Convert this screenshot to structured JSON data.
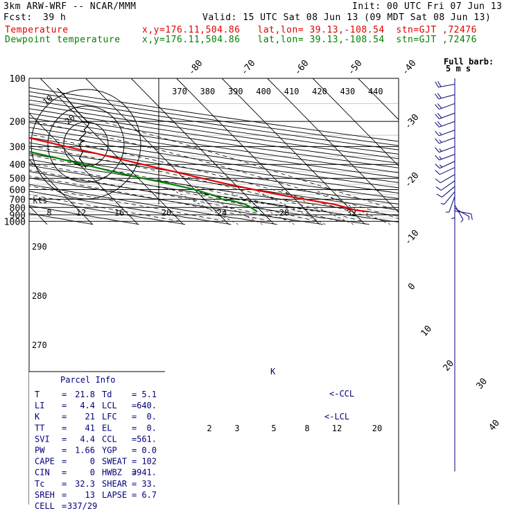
{
  "header": {
    "model": "3km ARW-WRF -- NCAR/MMM",
    "init": "Init: 00 UTC Fri 07 Jun 13",
    "fcst_label": "Fcst:",
    "fcst_value": "39 h",
    "valid": "Valid: 15 UTC Sat 08 Jun 13 (09 MDT Sat 08 Jun 13)",
    "temp_label": "Temperature",
    "temp_info": "x,y=176.11,504.86   lat,lon= 39.13,-108.54  stn=GJT ,72476",
    "dew_label": "Dewpoint temperature",
    "dew_info": "x,y=176.11,504.86   lat,lon= 39.13,-108.54  stn=GJT ,72476"
  },
  "colors": {
    "temperature": "#e00000",
    "dewpoint": "#008000",
    "wind": "#00007a",
    "lines": "#000000",
    "isotherm_grey": "#c8c8c8"
  },
  "chart_data": {
    "type": "line",
    "diagram": "skew-T log-p",
    "y_axis": {
      "scale": "log",
      "ticks": [
        100,
        200,
        300,
        400,
        500,
        600,
        700,
        800,
        900,
        1000
      ]
    },
    "isotherm_labels": [
      -80,
      -70,
      -60,
      -50,
      -40,
      -30,
      -20,
      -10,
      0,
      10,
      20,
      30,
      40
    ],
    "theta_labels": [
      370,
      380,
      390,
      400,
      410,
      420,
      430,
      440
    ],
    "theta_low_labels": [
      290,
      280,
      270
    ],
    "mixing_ratio_labels": [
      "2",
      "3",
      "5",
      "8",
      "12",
      "20"
    ],
    "hodo_speed_labels": [
      "8",
      "12",
      "16",
      "20",
      "24",
      "28",
      "32"
    ],
    "hodo_ring_labels": [
      "10",
      "20"
    ],
    "hodo_units": "kts",
    "series": [
      {
        "name": "Temperature",
        "points": [
          [
            855,
            23.5
          ],
          [
            845,
            22
          ],
          [
            825,
            20.5
          ],
          [
            800,
            19.5
          ],
          [
            760,
            17.5
          ],
          [
            720,
            14
          ],
          [
            700,
            12
          ],
          [
            650,
            7.5
          ],
          [
            600,
            3
          ],
          [
            550,
            -1.5
          ],
          [
            500,
            -6
          ],
          [
            450,
            -10.5
          ],
          [
            400,
            -16
          ],
          [
            350,
            -22
          ],
          [
            300,
            -29
          ],
          [
            275,
            -33
          ],
          [
            250,
            -37
          ],
          [
            220,
            -42
          ],
          [
            200,
            -46
          ],
          [
            180,
            -50
          ],
          [
            160,
            -54
          ],
          [
            140,
            -57
          ],
          [
            125,
            -58
          ],
          [
            110,
            -60
          ],
          [
            100,
            -62
          ]
        ]
      },
      {
        "name": "Dewpoint temperature",
        "points": [
          [
            855,
            -1
          ],
          [
            800,
            -1.5
          ],
          [
            760,
            -2
          ],
          [
            720,
            -4
          ],
          [
            700,
            -6
          ],
          [
            660,
            -7
          ],
          [
            600,
            -10
          ],
          [
            550,
            -14
          ],
          [
            500,
            -19
          ],
          [
            450,
            -24
          ],
          [
            400,
            -29
          ],
          [
            350,
            -35
          ],
          [
            300,
            -42
          ],
          [
            250,
            -49
          ],
          [
            220,
            -53
          ],
          [
            200,
            -57
          ],
          [
            190,
            -60
          ],
          [
            180,
            -63
          ],
          [
            160,
            -67
          ],
          [
            140,
            -70
          ],
          [
            120,
            -73
          ],
          [
            110,
            -76
          ],
          [
            100,
            -79
          ]
        ]
      }
    ],
    "parcel_path_labels": {
      "ccl": "<-CCL",
      "lcl": "<-LCL"
    }
  },
  "parcel_info": {
    "title": "Parcel Info",
    "rows": [
      {
        "a_key": "T",
        "a_val": "21.8",
        "b_key": "Td",
        "b_val": "5.1"
      },
      {
        "a_key": "LI",
        "a_val": "4.4",
        "b_key": "LCL",
        "b_val": "640."
      },
      {
        "a_key": "K",
        "a_val": "21",
        "b_key": "LFC",
        "b_val": "0."
      },
      {
        "a_key": "TT",
        "a_val": "41",
        "b_key": "EL",
        "b_val": "0."
      },
      {
        "a_key": "SVI",
        "a_val": "4.4",
        "b_key": "CCL",
        "b_val": "561."
      },
      {
        "a_key": "PW",
        "a_val": "1.66",
        "b_key": "YGP",
        "b_val": "0.0"
      },
      {
        "a_key": "CAPE",
        "a_val": "0",
        "b_key": "SWEAT",
        "b_val": "102"
      },
      {
        "a_key": "CIN",
        "a_val": "0",
        "b_key": "HWBZ",
        "b_val": "3941."
      },
      {
        "a_key": "Tc",
        "a_val": "32.3",
        "b_key": "SHEAR",
        "b_val": "33."
      },
      {
        "a_key": "SREH",
        "a_val": "13",
        "b_key": "LAPSE",
        "b_val": "6.7"
      }
    ],
    "cell_label": "CELL",
    "cell_value": "337/29"
  },
  "wind": {
    "full_barb_label": "Full barb:",
    "full_barb_value": "5 m s",
    "barbs": [
      {
        "p": 110,
        "dir": 260,
        "speed": 20
      },
      {
        "p": 130,
        "dir": 255,
        "speed": 22
      },
      {
        "p": 150,
        "dir": 250,
        "speed": 22
      },
      {
        "p": 175,
        "dir": 250,
        "speed": 20
      },
      {
        "p": 200,
        "dir": 250,
        "speed": 18
      },
      {
        "p": 230,
        "dir": 250,
        "speed": 17
      },
      {
        "p": 260,
        "dir": 250,
        "speed": 16
      },
      {
        "p": 300,
        "dir": 250,
        "speed": 15
      },
      {
        "p": 340,
        "dir": 250,
        "speed": 14
      },
      {
        "p": 380,
        "dir": 245,
        "speed": 13
      },
      {
        "p": 420,
        "dir": 245,
        "speed": 12
      },
      {
        "p": 470,
        "dir": 240,
        "speed": 11
      },
      {
        "p": 520,
        "dir": 235,
        "speed": 10
      },
      {
        "p": 570,
        "dir": 230,
        "speed": 8
      },
      {
        "p": 620,
        "dir": 220,
        "speed": 6
      },
      {
        "p": 670,
        "dir": 200,
        "speed": 5
      },
      {
        "p": 720,
        "dir": 180,
        "speed": 4
      },
      {
        "p": 770,
        "dir": 150,
        "speed": 4
      },
      {
        "p": 810,
        "dir": 120,
        "speed": 6
      },
      {
        "p": 845,
        "dir": 100,
        "speed": 9
      }
    ]
  },
  "hodograph": [
    [
      -2,
      -7
    ],
    [
      -2.5,
      -6
    ],
    [
      -4,
      -4
    ],
    [
      -3,
      -2
    ],
    [
      -3.5,
      -1
    ],
    [
      -4,
      0
    ],
    [
      -3.5,
      1
    ],
    [
      -2.5,
      1.5
    ],
    [
      -4,
      2
    ],
    [
      -3,
      3
    ],
    [
      -2,
      4
    ],
    [
      -2.5,
      5
    ],
    [
      -1.5,
      6
    ],
    [
      -1,
      7
    ],
    [
      -2,
      8
    ],
    [
      -3,
      9
    ],
    [
      -4.5,
      10.5
    ],
    [
      -6.5,
      13
    ],
    [
      -9,
      16
    ],
    [
      -11,
      18
    ]
  ]
}
